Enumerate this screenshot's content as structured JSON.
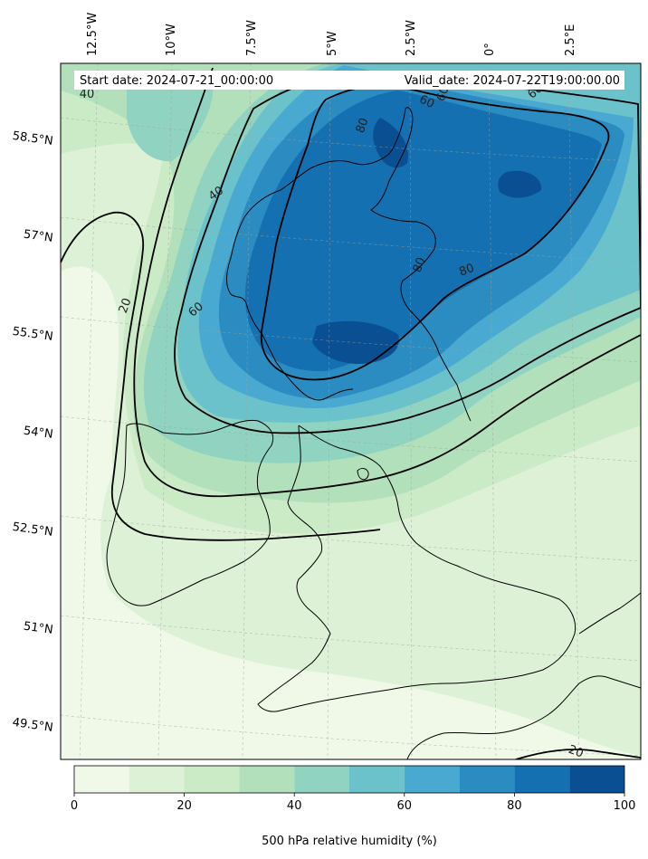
{
  "header": {
    "start_date": "Start date: 2024-07-21_00:00:00",
    "valid_date": "Valid_date: 2024-07-22T19:00:00.00"
  },
  "longitude_labels": [
    "12.5°W",
    "10°W",
    "7.5°W",
    "5°W",
    "2.5°W",
    "0°",
    "2.5°E"
  ],
  "latitude_labels": [
    "58.5°N",
    "57°N",
    "55.5°N",
    "54°N",
    "52.5°N",
    "51°N",
    "49.5°N"
  ],
  "contour_labels": [
    "40",
    "40",
    "20",
    "60",
    "60",
    "80",
    "80",
    "80",
    "60",
    "20",
    "60"
  ],
  "colorbar": {
    "label": "500 hPa relative humidity (%)",
    "levels": [
      0,
      10,
      20,
      30,
      40,
      50,
      60,
      70,
      80,
      90,
      100
    ],
    "tick_labels": [
      "0",
      "20",
      "40",
      "60",
      "80",
      "100"
    ],
    "colors": [
      "#f0f9e8",
      "#ddf1d6",
      "#cbeac6",
      "#b2e0bb",
      "#8fd3c0",
      "#6bc2cb",
      "#49a9d0",
      "#2b8cc1",
      "#1570b1",
      "#0a4f92"
    ]
  }
}
